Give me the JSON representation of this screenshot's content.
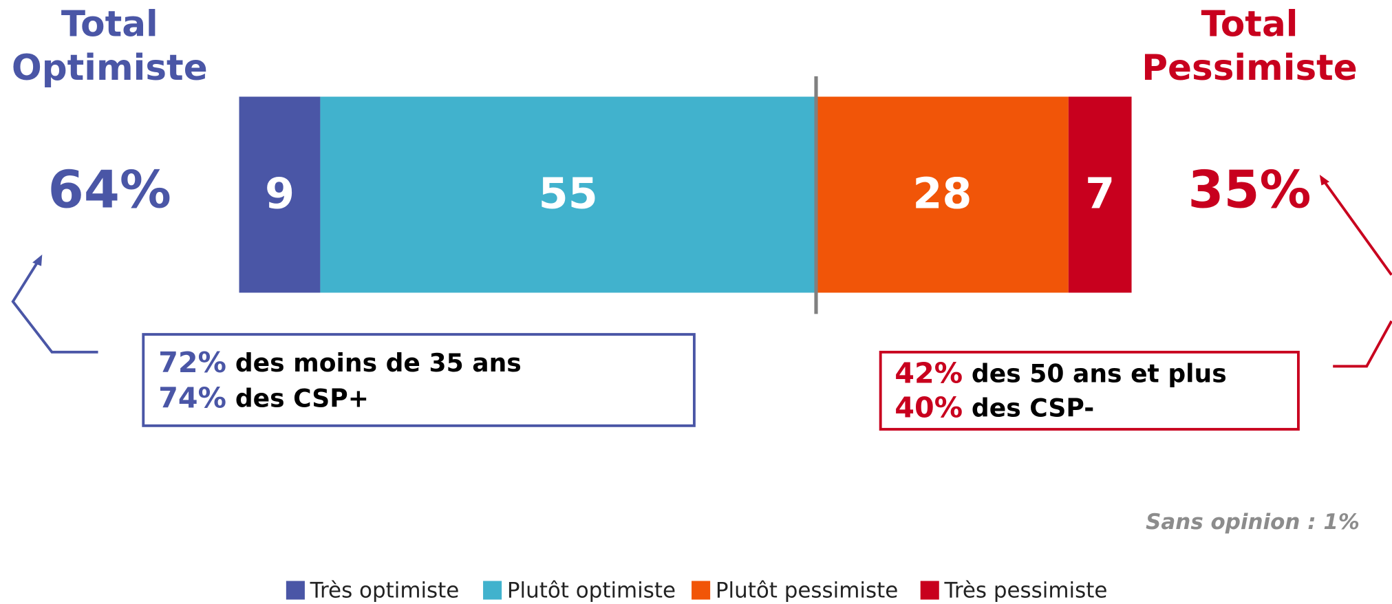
{
  "chart_data": {
    "type": "bar",
    "stacked": true,
    "orientation": "horizontal",
    "xlim": [
      0,
      99
    ],
    "series": [
      {
        "name": "Très optimiste",
        "color": "#4a56a6",
        "values": [
          9
        ]
      },
      {
        "name": "Plutôt optimiste",
        "color": "#41b2cd",
        "values": [
          55
        ]
      },
      {
        "name": "Plutôt pessimiste",
        "color": "#f15508",
        "values": [
          28
        ]
      },
      {
        "name": "Très pessimiste",
        "color": "#c8001e",
        "values": [
          7
        ]
      }
    ],
    "totals": [
      {
        "title_lines": [
          "Total",
          "Optimiste"
        ],
        "value_label": "64%",
        "color": "#4a56a6",
        "callout": [
          {
            "pct": "72%",
            "text": "des moins de 35 ans"
          },
          {
            "pct": "74%",
            "text": "des CSP+"
          }
        ]
      },
      {
        "title_lines": [
          "Total",
          "Pessimiste"
        ],
        "value_label": "35%",
        "color": "#c8001e",
        "callout": [
          {
            "pct": "42%",
            "text": "des 50 ans et plus"
          },
          {
            "pct": "40%",
            "text": "des CSP-"
          }
        ]
      }
    ],
    "note": "Sans opinion : 1%",
    "legend": "bottom"
  }
}
